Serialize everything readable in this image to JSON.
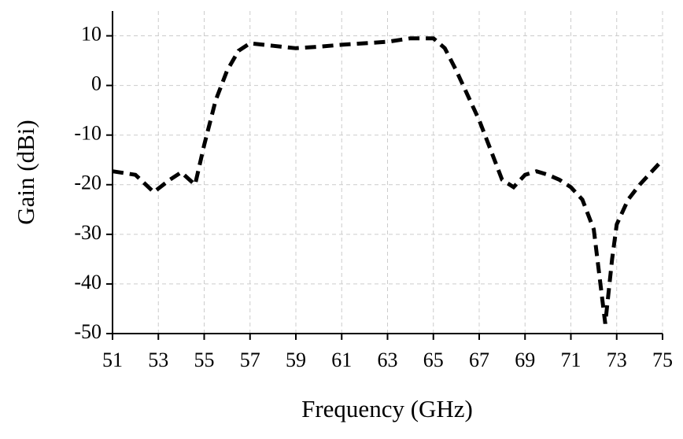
{
  "chart_data": {
    "type": "line",
    "x_label": "Frequency (GHz)",
    "y_label": "Gain (dBi)",
    "x": [
      51,
      52,
      52.8,
      53.5,
      54,
      54.6,
      55,
      55.5,
      56,
      56.5,
      57,
      58,
      59,
      60,
      61,
      62,
      63,
      64,
      65,
      65.5,
      66,
      66.5,
      67,
      67.5,
      68,
      68.5,
      69,
      69.5,
      70,
      70.5,
      71,
      71.5,
      72,
      72.5,
      72.8,
      73,
      73.5,
      74,
      74.5,
      75
    ],
    "series": [
      {
        "color": "#000000",
        "values": [
          -17.3,
          -18,
          -21.5,
          -19,
          -17.5,
          -20,
          -12,
          -3,
          3,
          7,
          8.5,
          8,
          7.5,
          7.8,
          8.2,
          8.5,
          8.8,
          9.5,
          9.5,
          7.5,
          3,
          -2,
          -7,
          -13,
          -19,
          -20.5,
          -18,
          -17.3,
          -18,
          -19,
          -20.5,
          -23,
          -29,
          -48,
          -35,
          -28,
          -23,
          -20,
          -17.5,
          -15
        ]
      }
    ],
    "xlim": [
      51,
      75
    ],
    "xticks": [
      51,
      53,
      55,
      57,
      59,
      61,
      63,
      65,
      67,
      69,
      71,
      73,
      75
    ],
    "ylim": [
      -50,
      15
    ],
    "yticks": [
      -50,
      -40,
      -30,
      -20,
      -10,
      0,
      10
    ],
    "grid": true,
    "line_style": "dashed"
  }
}
